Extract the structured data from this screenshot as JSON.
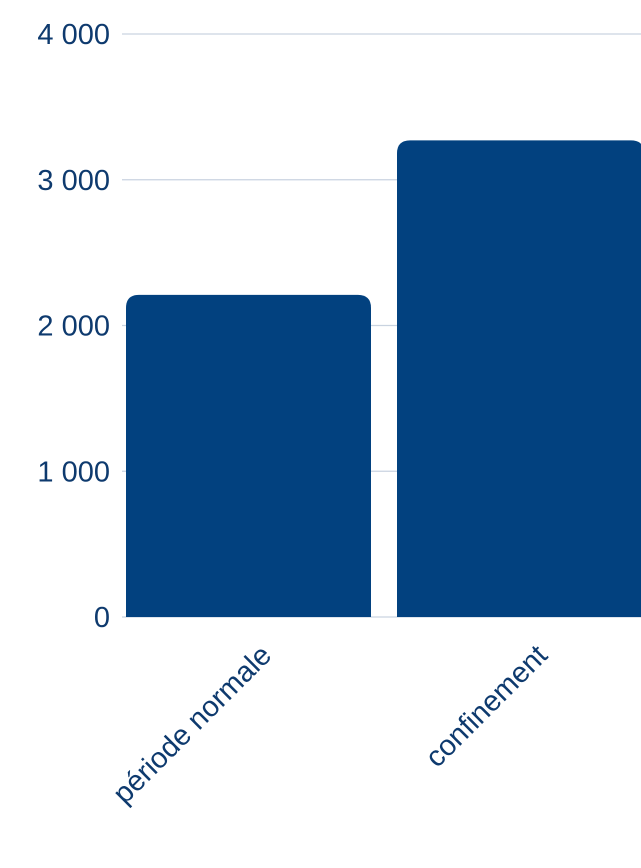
{
  "chart_data": {
    "type": "bar",
    "categories": [
      "période normale",
      "confinement"
    ],
    "values": [
      2210,
      3270
    ],
    "ylim": [
      0,
      4000
    ],
    "yticks": [
      0,
      1000,
      2000,
      3000,
      4000
    ],
    "ytick_labels": [
      "0",
      "1 000",
      "2 000",
      "3 000",
      "4 000"
    ],
    "grid": true,
    "legend": "none",
    "title": "",
    "xlabel": "",
    "ylabel": "",
    "colors": {
      "bar": "#02417f",
      "text": "#0e3a6e",
      "grid": "#c9d3e0"
    }
  }
}
